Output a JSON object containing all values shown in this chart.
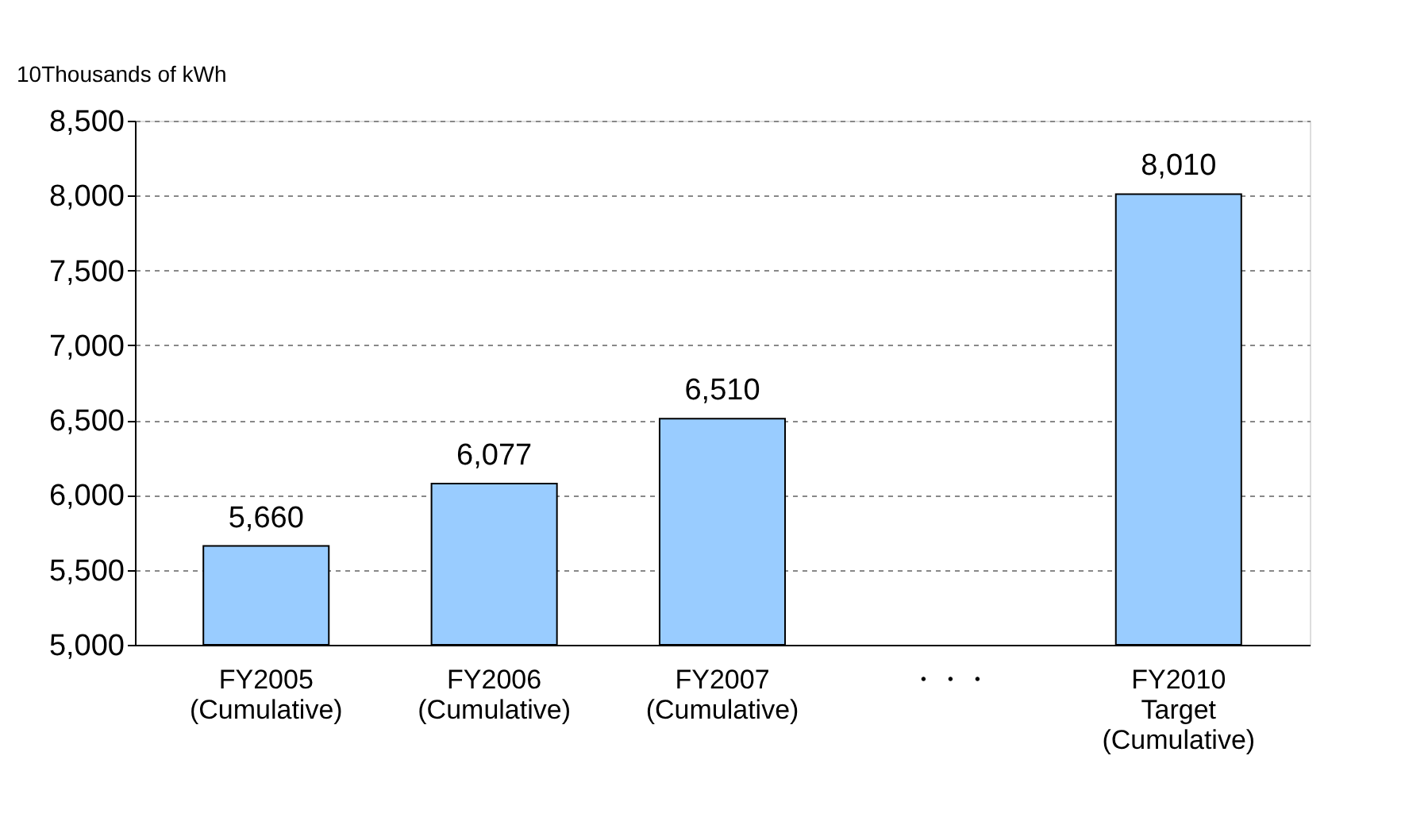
{
  "chart_data": {
    "type": "bar",
    "ylabel": "10Thousands of kWh",
    "categories": [
      "FY2005\n(Cumulative)",
      "FY2006\n(Cumulative)",
      "FY2007\n(Cumulative)",
      "・・・",
      "FY2010\nTarget\n(Cumulative)"
    ],
    "values": [
      5660,
      6077,
      6510,
      null,
      8010
    ],
    "value_labels": [
      "5,660",
      "6,077",
      "6,510",
      null,
      "8,010"
    ],
    "color": "#99ccff",
    "ylim": [
      5000,
      8500
    ],
    "yticks": [
      {
        "value": 5000,
        "label": "5,000"
      },
      {
        "value": 5500,
        "label": "5,500"
      },
      {
        "value": 6000,
        "label": "6,000"
      },
      {
        "value": 6500,
        "label": "6,500"
      },
      {
        "value": 7000,
        "label": "7,000"
      },
      {
        "value": 7500,
        "label": "7,500"
      },
      {
        "value": 8000,
        "label": "8,000"
      },
      {
        "value": 8500,
        "label": "8,500"
      }
    ],
    "grid": "y"
  }
}
